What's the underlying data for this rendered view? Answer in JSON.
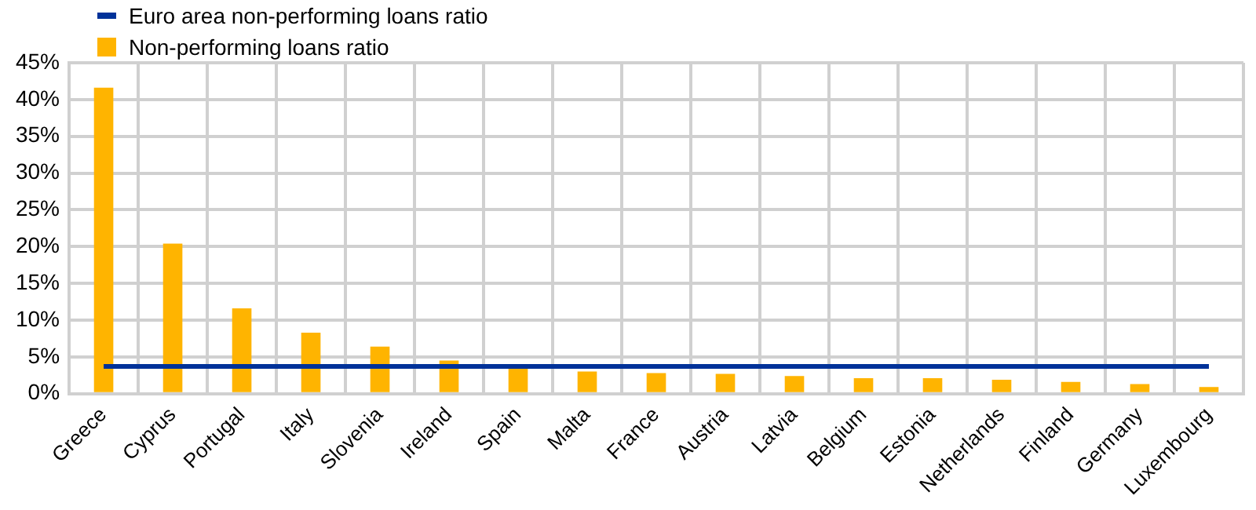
{
  "chart_data": {
    "type": "bar",
    "categories": [
      "Greece",
      "Cyprus",
      "Portugal",
      "Italy",
      "Slovenia",
      "Ireland",
      "Spain",
      "Malta",
      "France",
      "Austria",
      "Latvia",
      "Belgium",
      "Estonia",
      "Netherlands",
      "Finland",
      "Germany",
      "Luxembourg"
    ],
    "series": [
      {
        "name": "Euro area non-performing loans ratio",
        "type": "line",
        "color": "#003299",
        "values": [
          3.7,
          3.7,
          3.7,
          3.7,
          3.7,
          3.7,
          3.7,
          3.7,
          3.7,
          3.7,
          3.7,
          3.7,
          3.7,
          3.7,
          3.7,
          3.7,
          3.7
        ]
      },
      {
        "name": "Non-performing loans ratio",
        "color": "#ffb400",
        "values": [
          41.6,
          20.4,
          11.6,
          8.3,
          6.4,
          4.5,
          3.7,
          3.0,
          2.8,
          2.7,
          2.4,
          2.1,
          2.1,
          1.9,
          1.6,
          1.3,
          0.9
        ]
      }
    ],
    "ylim": [
      0,
      45
    ],
    "yticks": [
      {
        "value": 0,
        "label": "0%"
      },
      {
        "value": 5,
        "label": "5%"
      },
      {
        "value": 10,
        "label": "10%"
      },
      {
        "value": 15,
        "label": "15%"
      },
      {
        "value": 20,
        "label": "20%"
      },
      {
        "value": 25,
        "label": "25%"
      },
      {
        "value": 30,
        "label": "30%"
      },
      {
        "value": 35,
        "label": "35%"
      },
      {
        "value": 40,
        "label": "40%"
      },
      {
        "value": 45,
        "label": "45%"
      }
    ],
    "grid": true,
    "legend": "top left",
    "marker": "none"
  }
}
